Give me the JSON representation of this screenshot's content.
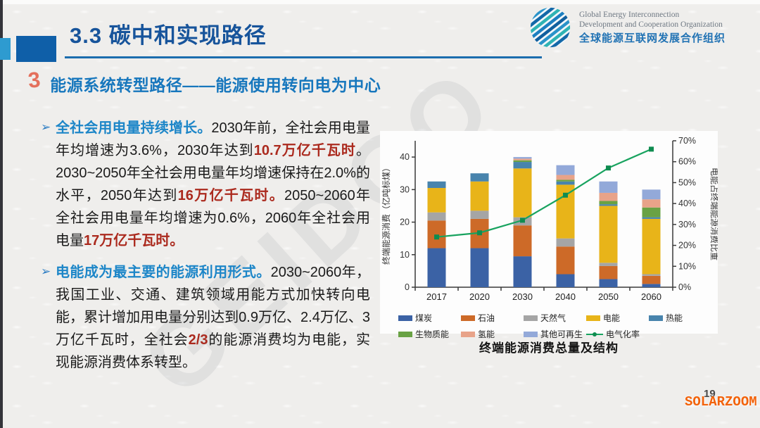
{
  "header": {
    "title": "3.3 碳中和实现路径",
    "org": {
      "name_en_line1": "Global Energy Interconnection",
      "name_en_line2": "Development and Cooperation Organization",
      "name_zh": "全球能源互联网发展合作组织"
    }
  },
  "section": {
    "number": "3",
    "heading": "能源系统转型路径——能源使用转向电为中心"
  },
  "bullets": [
    {
      "segments": [
        {
          "style": "lead",
          "text": "全社会用电量持续增长。"
        },
        {
          "style": "normal",
          "text": "2030年前，全社会用电量年均增速为3.6%，2030年达到"
        },
        {
          "style": "red",
          "text": "10.7万亿千瓦时"
        },
        {
          "style": "normal",
          "text": "。2030~2050年全社会用电量年均增速保持在2.0%的水平，2050年达到"
        },
        {
          "style": "red",
          "text": "16万亿千瓦时。"
        },
        {
          "style": "normal",
          "text": "2050~2060年全社会用电量年均增速为0.6%，2060年全社会用电量"
        },
        {
          "style": "red",
          "text": "17万亿千瓦时。"
        }
      ]
    },
    {
      "segments": [
        {
          "style": "lead",
          "text": "电能成为最主要的能源利用形式。"
        },
        {
          "style": "normal",
          "text": "2030~2060年，我国工业、交通、建筑领域用能方式加快转向电能，累计增加用电量分别达到0.9万亿、2.4万亿、3万亿千瓦时，全社会"
        },
        {
          "style": "red",
          "text": "2/3"
        },
        {
          "style": "normal",
          "text": "的能源消费均为电能，实现能源消费体系转型。"
        }
      ]
    }
  ],
  "chart_data": {
    "type": "bar",
    "subtype": "stacked-bar-with-line",
    "categories": [
      "2017",
      "2020",
      "2030",
      "2040",
      "2050",
      "2060"
    ],
    "series": [
      {
        "name": "煤炭",
        "color": "#3b62a5",
        "values": [
          12,
          12,
          9.5,
          4,
          2.5,
          1
        ]
      },
      {
        "name": "石油",
        "color": "#cd6a28",
        "values": [
          8.5,
          9,
          9.5,
          8.5,
          4,
          2.5
        ]
      },
      {
        "name": "天然气",
        "color": "#a5a5a5",
        "values": [
          2.5,
          2.5,
          2.5,
          2.5,
          1,
          0.5
        ]
      },
      {
        "name": "电能",
        "color": "#e8b419",
        "values": [
          7.5,
          9,
          15,
          16.5,
          17.5,
          17
        ]
      },
      {
        "name": "热能",
        "color": "#4884ad",
        "values": [
          2,
          2.5,
          2,
          1,
          0.5,
          0.5
        ]
      },
      {
        "name": "生物质能",
        "color": "#69a244",
        "values": [
          0,
          0,
          0.5,
          0.5,
          1,
          3
        ]
      },
      {
        "name": "氢能",
        "color": "#e8a389",
        "values": [
          0,
          0,
          0.5,
          1.5,
          2.5,
          2.5
        ]
      },
      {
        "name": "其他可再生",
        "color": "#93a9d9",
        "values": [
          0,
          0,
          0.5,
          3,
          3.5,
          3
        ]
      }
    ],
    "line_series": {
      "name": "电气化率",
      "color": "#18a35f",
      "marker_color": "#0f8c50",
      "values_percent": [
        24,
        26,
        32,
        44,
        57,
        66
      ]
    },
    "ylabel_left": "终端能源消费（亿吨标煤）",
    "ylabel_right": "电能占终端能源消费比重",
    "ylim_left": [
      0,
      45
    ],
    "yticks_left": [
      0,
      10,
      20,
      30,
      40
    ],
    "ylim_right_percent": [
      0,
      70
    ],
    "yticks_right_percent": [
      "0%",
      "10%",
      "20%",
      "30%",
      "40%",
      "50%",
      "60%",
      "70%"
    ],
    "legend_rows": [
      [
        "煤炭",
        "石油",
        "天然气",
        "电能",
        "热能"
      ],
      [
        "生物质能",
        "氢能",
        "其他可再生",
        "电气化率"
      ]
    ],
    "grid": false,
    "legend_position": "bottom",
    "caption": "终端能源消费总量及结构"
  },
  "footer": {
    "page_number": "19",
    "watermark": "SOLARZOOM"
  },
  "watermark_large": "GEIDCO"
}
